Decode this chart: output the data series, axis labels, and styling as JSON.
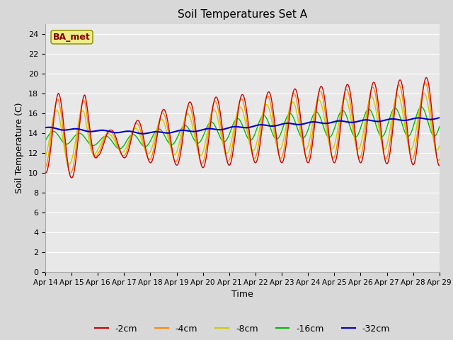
{
  "title": "Soil Temperatures Set A",
  "xlabel": "Time",
  "ylabel": "Soil Temperature (C)",
  "annotation_text": "BA_met",
  "ylim": [
    0,
    25
  ],
  "yticks": [
    0,
    2,
    4,
    6,
    8,
    10,
    12,
    14,
    16,
    18,
    20,
    22,
    24
  ],
  "xtick_labels": [
    "Apr 14",
    "Apr 15",
    "Apr 16",
    "Apr 17",
    "Apr 18",
    "Apr 19",
    "Apr 20",
    "Apr 21",
    "Apr 22",
    "Apr 23",
    "Apr 24",
    "Apr 25",
    "Apr 26",
    "Apr 27",
    "Apr 28",
    "Apr 29"
  ],
  "series_colors": [
    "#cc0000",
    "#ff8800",
    "#cccc00",
    "#00bb00",
    "#0000cc"
  ],
  "series_labels": [
    "-2cm",
    "-4cm",
    "-8cm",
    "-16cm",
    "-32cm"
  ],
  "fig_bg_color": "#d8d8d8",
  "plot_bg_color": "#e8e8e8",
  "grid_color": "#ffffff",
  "n_points": 720,
  "annotation_color": "#880000",
  "annotation_bg": "#eeee88",
  "annotation_edge": "#888800"
}
